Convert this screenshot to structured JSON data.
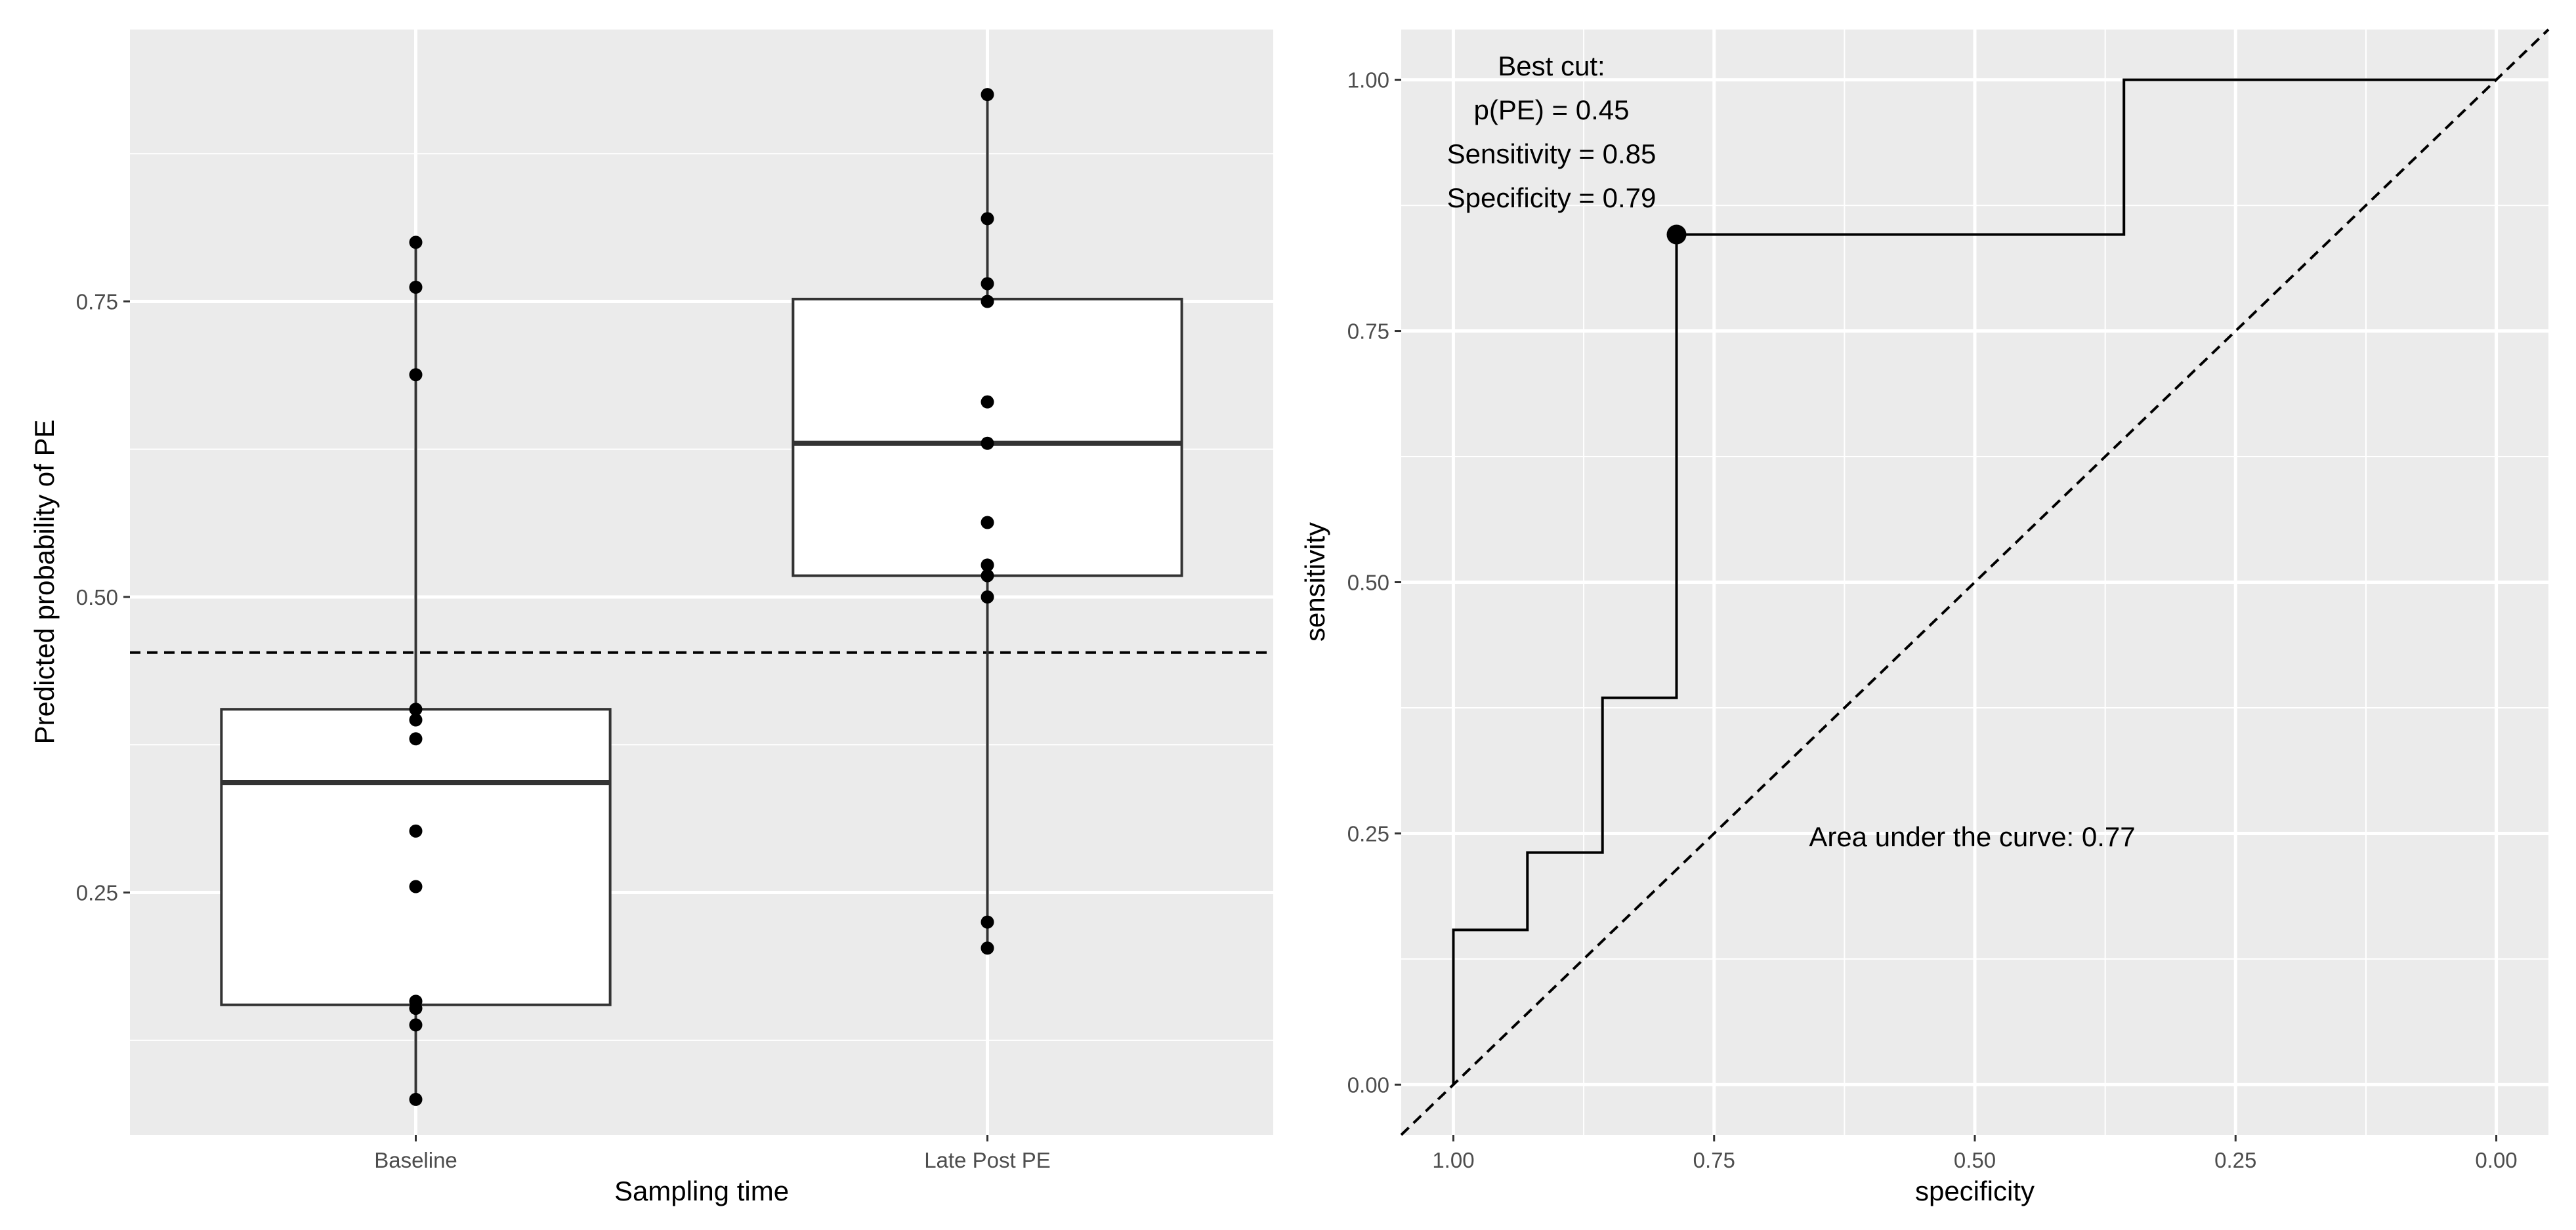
{
  "chart_data": [
    {
      "type": "box",
      "title": "",
      "xlabel": "Sampling time",
      "ylabel": "Predicted probability of PE",
      "ylim": [
        0.045,
        0.98
      ],
      "yticks": [
        {
          "value": 0.25,
          "label": "0.25"
        },
        {
          "value": 0.5,
          "label": "0.50"
        },
        {
          "value": 0.75,
          "label": "0.75"
        }
      ],
      "categories": [
        "Baseline",
        "Late Post PE"
      ],
      "boxes": [
        {
          "category": "Baseline",
          "lower_whisker": 0.075,
          "q1": 0.155,
          "median": 0.343,
          "q3": 0.405,
          "upper_whisker": 0.8
        },
        {
          "category": "Late Post PE",
          "lower_whisker": 0.203,
          "q1": 0.518,
          "median": 0.63,
          "q3": 0.752,
          "upper_whisker": 0.925
        }
      ],
      "points": [
        {
          "category": "Baseline",
          "values": [
            0.8,
            0.762,
            0.688,
            0.405,
            0.396,
            0.38,
            0.302,
            0.255,
            0.158,
            0.152,
            0.138,
            0.075
          ]
        },
        {
          "category": "Late Post PE",
          "values": [
            0.925,
            0.82,
            0.765,
            0.75,
            0.665,
            0.63,
            0.563,
            0.527,
            0.518,
            0.5,
            0.225,
            0.203
          ]
        }
      ],
      "reference_line": {
        "y": 0.453,
        "style": "dashed"
      }
    },
    {
      "type": "line",
      "title": "",
      "xlabel": "specificity",
      "ylabel": "sensitivity",
      "xlim": [
        1.05,
        -0.05
      ],
      "ylim": [
        -0.05,
        1.05
      ],
      "xticks": [
        {
          "value": 1.0,
          "label": "1.00"
        },
        {
          "value": 0.75,
          "label": "0.75"
        },
        {
          "value": 0.5,
          "label": "0.50"
        },
        {
          "value": 0.25,
          "label": "0.25"
        },
        {
          "value": 0.0,
          "label": "0.00"
        }
      ],
      "yticks": [
        {
          "value": 0.0,
          "label": "0.00"
        },
        {
          "value": 0.25,
          "label": "0.25"
        },
        {
          "value": 0.5,
          "label": "0.50"
        },
        {
          "value": 0.75,
          "label": "0.75"
        },
        {
          "value": 1.0,
          "label": "1.00"
        }
      ],
      "series": [
        {
          "name": "ROC",
          "x": [
            1.0,
            1.0,
            0.929,
            0.929,
            0.857,
            0.857,
            0.786,
            0.786,
            0.357,
            0.357,
            0.0
          ],
          "y": [
            0.0,
            0.154,
            0.154,
            0.231,
            0.231,
            0.385,
            0.385,
            0.846,
            0.846,
            1.0,
            1.0
          ]
        }
      ],
      "diagonal": {
        "x": [
          1.05,
          -0.05
        ],
        "y": [
          -0.05,
          1.05
        ],
        "style": "dashed"
      },
      "best_point": {
        "specificity": 0.786,
        "sensitivity": 0.846
      },
      "annotations": {
        "best_cut_lines": [
          "Best cut:",
          "p(PE) =  0.45",
          "Sensitivity = 0.85",
          "Specificity = 0.79"
        ],
        "auc_text": "Area under the curve: 0.77"
      }
    }
  ]
}
